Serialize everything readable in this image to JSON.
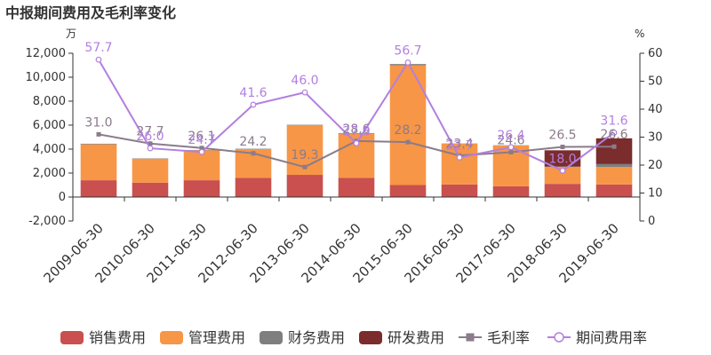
{
  "chart_data": {
    "type": "bar",
    "title": "中报期间费用及毛利率变化",
    "y_left_unit": "万",
    "y_right_unit": "%",
    "y_left_range": [
      -2000,
      12000
    ],
    "y_left_ticks": [
      "-2,000",
      "0",
      "2,000",
      "4,000",
      "6,000",
      "8,000",
      "10,000",
      "12,000"
    ],
    "y_left_tick_values": [
      -2000,
      0,
      2000,
      4000,
      6000,
      8000,
      10000,
      12000
    ],
    "y_right_range": [
      0,
      60
    ],
    "y_right_ticks": [
      "0",
      "10",
      "20",
      "30",
      "40",
      "50",
      "60"
    ],
    "y_right_tick_values": [
      0,
      10,
      20,
      30,
      40,
      50,
      60
    ],
    "categories": [
      "2009-06-30",
      "2010-06-30",
      "2011-06-30",
      "2012-06-30",
      "2013-06-30",
      "2014-06-30",
      "2015-06-30",
      "2016-06-30",
      "2017-06-30",
      "2018-06-30",
      "2019-06-30"
    ],
    "bar_series": [
      {
        "name": "销售费用",
        "color": "#c9504e",
        "values": [
          1400,
          1200,
          1400,
          1600,
          1850,
          1600,
          1000,
          1050,
          900,
          1100,
          1050
        ]
      },
      {
        "name": "管理费用",
        "color": "#f79646",
        "values": [
          3000,
          2000,
          2500,
          2400,
          4150,
          3700,
          10000,
          3400,
          3400,
          1400,
          1450
        ]
      },
      {
        "name": "财务费用",
        "color": "#7f7f7f",
        "values": [
          50,
          30,
          30,
          30,
          30,
          40,
          100,
          20,
          20,
          50,
          250
        ]
      },
      {
        "name": "研发费用",
        "color": "#7b2c2c",
        "values": [
          0,
          0,
          0,
          0,
          0,
          0,
          0,
          0,
          0,
          1350,
          2150
        ]
      }
    ],
    "line_series": [
      {
        "name": "毛利率",
        "color": "#8b7b8b",
        "marker": "square",
        "values": [
          31.0,
          27.7,
          26.1,
          24.2,
          19.3,
          28.6,
          28.2,
          23.4,
          24.6,
          26.5,
          26.6
        ],
        "labels": [
          "31.0",
          "27.7",
          "26.1",
          "24.2",
          "19.3",
          "28.6",
          "28.2",
          "23.4",
          "24.6",
          "26.5",
          "26.6"
        ]
      },
      {
        "name": "期间费用率",
        "color": "#b37fe0",
        "marker": "circle",
        "values": [
          57.7,
          26.0,
          24.7,
          41.6,
          46.0,
          27.8,
          56.7,
          22.7,
          26.4,
          18.0,
          31.6
        ],
        "labels": [
          "57.7",
          "26.0",
          "24.7",
          "41.6",
          "46.0",
          "27.8",
          "56.7",
          "22.7",
          "26.4",
          "18.0",
          "31.6"
        ]
      }
    ],
    "legend": {
      "position": "bottom"
    },
    "grid": false
  }
}
